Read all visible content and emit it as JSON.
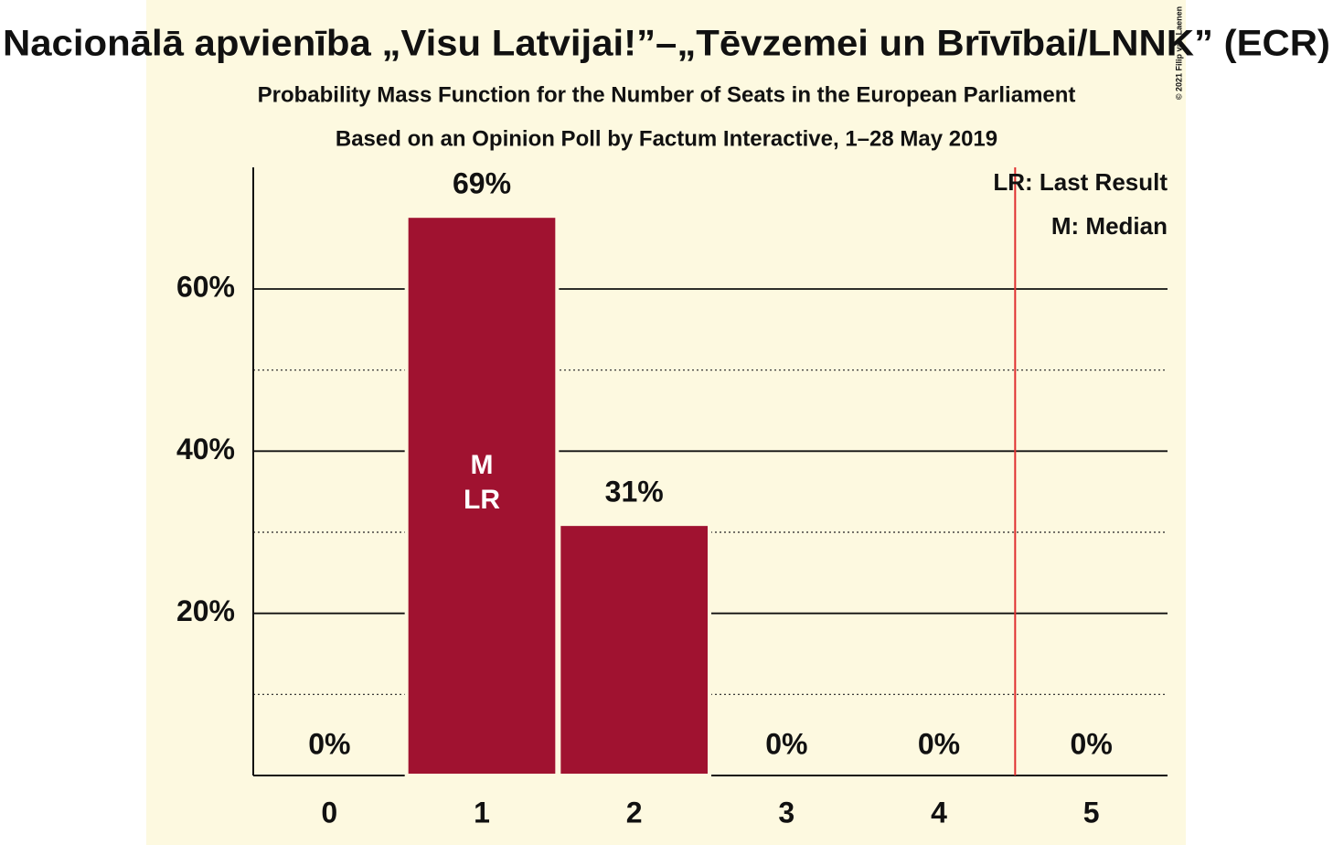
{
  "chart_data": {
    "type": "bar",
    "title": "Nacionālā apvienība „Visu Latvijai!”–„Tēvzemei un Brīvībai/LNNK” (ECR)",
    "subtitle": "Probability Mass Function for the Number of Seats in the European Parliament",
    "subtitle2": "Based on an Opinion Poll by Factum Interactive, 1–28 May 2019",
    "copyright": "© 2021 Filip van Laenen",
    "categories": [
      "0",
      "1",
      "2",
      "3",
      "4",
      "5"
    ],
    "values": [
      0,
      69,
      31,
      0,
      0,
      0
    ],
    "value_labels": [
      "0%",
      "69%",
      "31%",
      "0%",
      "0%",
      "0%"
    ],
    "color": "#a01230",
    "ylim": [
      0,
      75
    ],
    "yticks": [
      {
        "value": 20,
        "label": "20%"
      },
      {
        "value": 40,
        "label": "40%"
      },
      {
        "value": 60,
        "label": "60%"
      }
    ],
    "minor_yticks": [
      10,
      30,
      50
    ],
    "grid": true,
    "median": 1,
    "median_label": "M",
    "last_result": 1,
    "last_result_label": "LR",
    "threshold_x": 4.5,
    "threshold_color": "#e03030",
    "legend": [
      "LR: Last Result",
      "M: Median"
    ]
  }
}
